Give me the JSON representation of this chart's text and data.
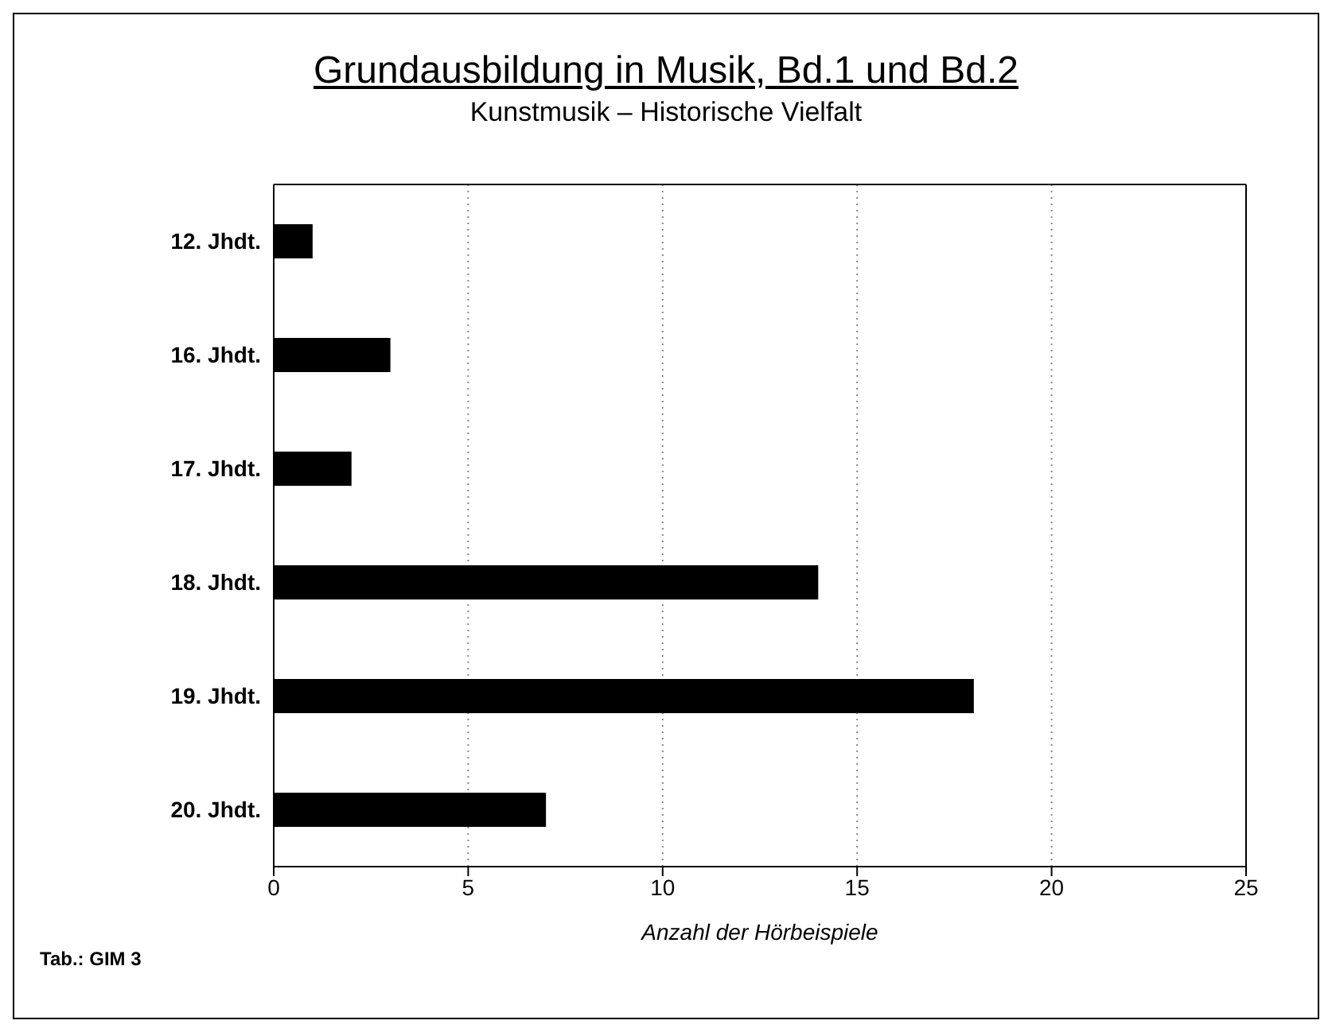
{
  "chart_data": {
    "type": "bar",
    "orientation": "horizontal",
    "title": "Grundausbildung in Musik, Bd.1 und Bd.2",
    "subtitle": "Kunstmusik – Historische Vielfalt",
    "xlabel": "Anzahl der Hörbeispiele",
    "categories": [
      "12. Jhdt.",
      "16. Jhdt.",
      "17. Jhdt.",
      "18. Jhdt.",
      "19. Jhdt.",
      "20. Jhdt."
    ],
    "values": [
      1,
      3,
      2,
      14,
      18,
      7
    ],
    "color": "#000000",
    "xlim": [
      0,
      25
    ],
    "xticks": [
      0,
      5,
      10,
      15,
      20,
      25
    ],
    "grid": "x",
    "legend": false,
    "annotations": [
      "Tab.: GIM 3"
    ]
  }
}
